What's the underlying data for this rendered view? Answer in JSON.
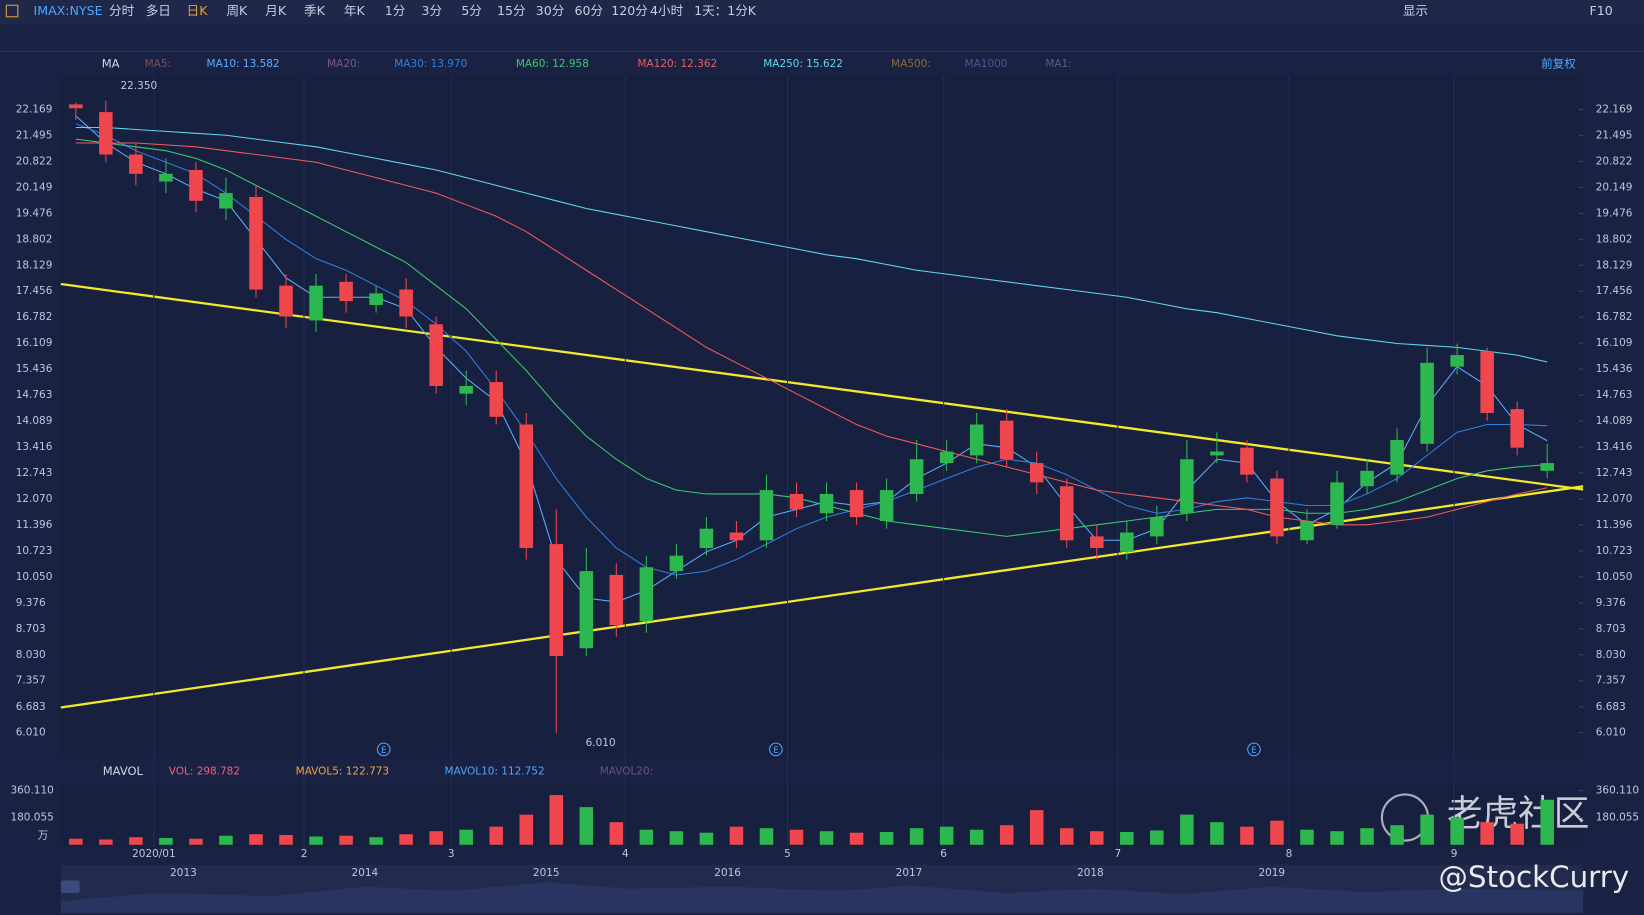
{
  "toolbar": {
    "symbol": "IMAX:NYSE",
    "periods": [
      "分时",
      "多日",
      "日K",
      "周K",
      "月K",
      "季K",
      "年K",
      "1分",
      "3分",
      "5分",
      "15分",
      "30分",
      "60分",
      "120分",
      "4小时",
      "1天：1分K"
    ],
    "display": "显示",
    "f10": "F10"
  },
  "chart_data": {
    "type": "candlestick",
    "indicator": "MA",
    "adjust": "前复权",
    "xlim": [
      0,
      50
    ],
    "xticks": [
      {
        "value": 3.1,
        "label": "2020/01"
      },
      {
        "value": 8.1,
        "label": "2"
      },
      {
        "value": 13.0,
        "label": "3"
      },
      {
        "value": 18.8,
        "label": "4"
      },
      {
        "value": 24.2,
        "label": "5"
      },
      {
        "value": 29.4,
        "label": "6"
      },
      {
        "value": 35.2,
        "label": "7"
      },
      {
        "value": 40.9,
        "label": "8"
      },
      {
        "value": 46.4,
        "label": "9"
      }
    ],
    "ylim": [
      5.36,
      23.05
    ],
    "yticks": [
      22.169,
      21.495,
      20.822,
      20.149,
      19.476,
      18.802,
      18.129,
      17.456,
      16.782,
      16.109,
      15.436,
      14.763,
      14.089,
      13.416,
      12.743,
      {
        "value": 12.07,
        "label": "12.070"
      },
      11.396,
      10.723,
      {
        "value": 10.05,
        "label": "10.050"
      },
      9.376,
      8.703,
      {
        "value": 8.03,
        "label": "8.030"
      },
      7.357,
      6.683,
      {
        "value": 6.01,
        "label": "6.010"
      }
    ],
    "up_color": "#2db84f",
    "down_color": "#f0464e",
    "open": [
      22.3,
      22.1,
      21.0,
      20.3,
      20.6,
      19.6,
      19.9,
      17.6,
      16.7,
      17.7,
      17.1,
      17.5,
      16.6,
      14.8,
      15.1,
      14.0,
      10.9,
      8.2,
      10.1,
      8.9,
      10.2,
      10.8,
      11.2,
      11.0,
      12.2,
      11.7,
      12.3,
      11.5,
      12.2,
      13.0,
      13.2,
      14.1,
      13.0,
      12.4,
      11.1,
      10.7,
      11.1,
      11.7,
      13.2,
      13.4,
      12.6,
      11.0,
      11.4,
      12.4,
      12.7,
      13.5,
      15.5,
      15.9,
      14.4,
      12.8
    ],
    "high": [
      22.35,
      22.4,
      21.3,
      20.9,
      20.8,
      20.4,
      20.2,
      17.9,
      17.9,
      17.9,
      17.6,
      17.8,
      16.8,
      15.4,
      15.4,
      14.3,
      11.8,
      10.8,
      10.4,
      10.6,
      10.9,
      11.6,
      11.5,
      12.7,
      12.5,
      12.5,
      12.5,
      12.6,
      13.6,
      13.6,
      14.3,
      14.4,
      13.3,
      12.6,
      11.4,
      11.5,
      11.9,
      13.6,
      13.8,
      13.6,
      12.8,
      11.8,
      12.8,
      13.1,
      13.9,
      16.0,
      16.1,
      16.0,
      14.6,
      13.5
    ],
    "low": [
      21.9,
      20.8,
      20.2,
      20.0,
      19.5,
      19.3,
      17.3,
      16.5,
      16.4,
      16.9,
      16.9,
      16.5,
      14.8,
      14.5,
      14.0,
      10.5,
      6.01,
      8.0,
      8.5,
      8.6,
      10.0,
      10.6,
      10.8,
      10.8,
      11.6,
      11.5,
      11.4,
      11.3,
      12.0,
      12.8,
      13.0,
      12.9,
      12.2,
      10.8,
      10.5,
      10.5,
      10.9,
      11.5,
      13.0,
      12.5,
      10.9,
      10.9,
      11.3,
      12.2,
      12.5,
      13.3,
      15.3,
      14.1,
      13.2,
      12.6
    ],
    "close": [
      22.2,
      21.0,
      20.5,
      20.5,
      19.8,
      20.0,
      17.5,
      16.8,
      17.6,
      17.2,
      17.4,
      16.8,
      15.0,
      15.0,
      14.2,
      10.8,
      8.0,
      10.2,
      8.8,
      10.3,
      10.6,
      11.3,
      11.0,
      12.3,
      11.8,
      12.2,
      11.6,
      12.3,
      13.1,
      13.3,
      14.0,
      13.1,
      12.5,
      11.0,
      10.8,
      11.2,
      11.6,
      13.1,
      13.3,
      12.7,
      11.1,
      11.5,
      12.5,
      12.8,
      13.6,
      15.6,
      15.8,
      14.3,
      13.4,
      13.0
    ],
    "annotations": {
      "high": "22.350",
      "low": "6.010"
    },
    "events": [
      "E",
      "E",
      "E"
    ],
    "inactive_ma": [
      {
        "name": "MA5:",
        "color": "#7b4f55"
      },
      {
        "name": "MA20:",
        "color": "#7a5a86"
      },
      {
        "name": "MA500:",
        "color": "#8a6b3c"
      },
      {
        "name": "MA1000",
        "color": "#5a4f8e"
      },
      {
        "name": "MA1:",
        "color": "#55607a"
      }
    ],
    "series": [
      {
        "name": "MA10: 13.582",
        "color": "#5aaeff",
        "values": [
          22.0,
          21.3,
          20.8,
          20.5,
          20.1,
          19.8,
          18.8,
          17.8,
          17.3,
          17.3,
          17.3,
          17.0,
          16.0,
          15.2,
          14.6,
          13.0,
          10.5,
          9.5,
          9.4,
          9.7,
          10.2,
          10.7,
          11.0,
          11.6,
          11.8,
          12.0,
          11.9,
          12.0,
          12.6,
          13.0,
          13.5,
          13.4,
          12.9,
          11.9,
          11.0,
          11.0,
          11.3,
          12.3,
          13.1,
          13.0,
          12.0,
          11.4,
          11.8,
          12.5,
          13.0,
          14.5,
          15.5,
          15.0,
          14.0,
          13.58
        ]
      },
      {
        "name": "MA30: 13.970",
        "color": "#2f7fe0",
        "values": [
          21.8,
          21.5,
          21.1,
          20.8,
          20.5,
          20.0,
          19.4,
          18.8,
          18.3,
          18.0,
          17.6,
          17.2,
          16.6,
          15.9,
          14.9,
          13.8,
          12.6,
          11.6,
          10.8,
          10.3,
          10.1,
          10.2,
          10.5,
          10.9,
          11.3,
          11.6,
          11.8,
          12.0,
          12.3,
          12.6,
          12.9,
          13.1,
          13.0,
          12.7,
          12.3,
          11.9,
          11.7,
          11.8,
          12.0,
          12.1,
          12.0,
          11.9,
          11.9,
          12.2,
          12.6,
          13.2,
          13.8,
          14.0,
          14.0,
          13.97
        ]
      },
      {
        "name": "MA60: 12.958",
        "color": "#3cc873",
        "values": [
          21.4,
          21.3,
          21.2,
          21.1,
          20.9,
          20.6,
          20.2,
          19.8,
          19.4,
          19.0,
          18.6,
          18.2,
          17.6,
          17.0,
          16.2,
          15.4,
          14.5,
          13.7,
          13.1,
          12.6,
          12.3,
          12.2,
          12.2,
          12.2,
          12.1,
          11.9,
          11.7,
          11.5,
          11.4,
          11.3,
          11.2,
          11.1,
          11.2,
          11.3,
          11.4,
          11.5,
          11.6,
          11.7,
          11.8,
          11.8,
          11.8,
          11.7,
          11.7,
          11.8,
          12.0,
          12.3,
          12.6,
          12.8,
          12.9,
          12.96
        ]
      },
      {
        "name": "MA120: 12.362",
        "color": "#f05a5a",
        "values": [
          21.3,
          21.3,
          21.3,
          21.25,
          21.2,
          21.1,
          21.0,
          20.9,
          20.8,
          20.6,
          20.4,
          20.2,
          20.0,
          19.7,
          19.4,
          19.0,
          18.5,
          18.0,
          17.5,
          17.0,
          16.5,
          16.0,
          15.6,
          15.2,
          14.8,
          14.4,
          14.0,
          13.7,
          13.5,
          13.3,
          13.1,
          12.9,
          12.7,
          12.5,
          12.3,
          12.2,
          12.1,
          12.0,
          11.9,
          11.8,
          11.6,
          11.5,
          11.4,
          11.4,
          11.5,
          11.6,
          11.8,
          12.0,
          12.2,
          12.36
        ]
      },
      {
        "name": "MA250: 15.622",
        "color": "#5fd6ef",
        "values": [
          21.7,
          21.7,
          21.65,
          21.6,
          21.55,
          21.5,
          21.4,
          21.3,
          21.2,
          21.05,
          20.9,
          20.75,
          20.6,
          20.4,
          20.2,
          20.0,
          19.8,
          19.6,
          19.45,
          19.3,
          19.15,
          19.0,
          18.85,
          18.7,
          18.55,
          18.4,
          18.3,
          18.15,
          18.0,
          17.9,
          17.8,
          17.7,
          17.6,
          17.5,
          17.4,
          17.3,
          17.15,
          17.0,
          16.9,
          16.75,
          16.6,
          16.45,
          16.3,
          16.2,
          16.1,
          16.05,
          16.0,
          15.9,
          15.8,
          15.62
        ]
      }
    ]
  },
  "volume": {
    "indicator": "MAVOL",
    "legend": [
      {
        "name": "VOL: 298.782",
        "color": "#f0607e"
      },
      {
        "name": "MAVOL5: 122.773",
        "color": "#f0a040"
      },
      {
        "name": "MAVOL10: 112.752",
        "color": "#4da6ff"
      },
      {
        "name": "MAVOL20:",
        "color": "#6a4f86"
      }
    ],
    "ylim": [
      0,
      403.3
    ],
    "yticks": [
      {
        "value": 360.11,
        "label": "360.110"
      },
      180.055
    ],
    "unit": "万",
    "values": [
      40,
      35,
      50,
      45,
      40,
      60,
      70,
      65,
      55,
      60,
      50,
      70,
      90,
      100,
      120,
      200,
      330,
      250,
      150,
      100,
      90,
      80,
      120,
      110,
      100,
      90,
      80,
      85,
      110,
      120,
      100,
      130,
      230,
      110,
      90,
      85,
      95,
      200,
      150,
      120,
      160,
      100,
      90,
      110,
      130,
      200,
      180,
      150,
      140,
      298.782
    ]
  },
  "navigator": {
    "years": [
      "2013",
      "2014",
      "2015",
      "2016",
      "2017",
      "2018",
      "2019"
    ]
  },
  "watermark": {
    "brand": "老虎社区",
    "handle": "@StockCurry"
  }
}
